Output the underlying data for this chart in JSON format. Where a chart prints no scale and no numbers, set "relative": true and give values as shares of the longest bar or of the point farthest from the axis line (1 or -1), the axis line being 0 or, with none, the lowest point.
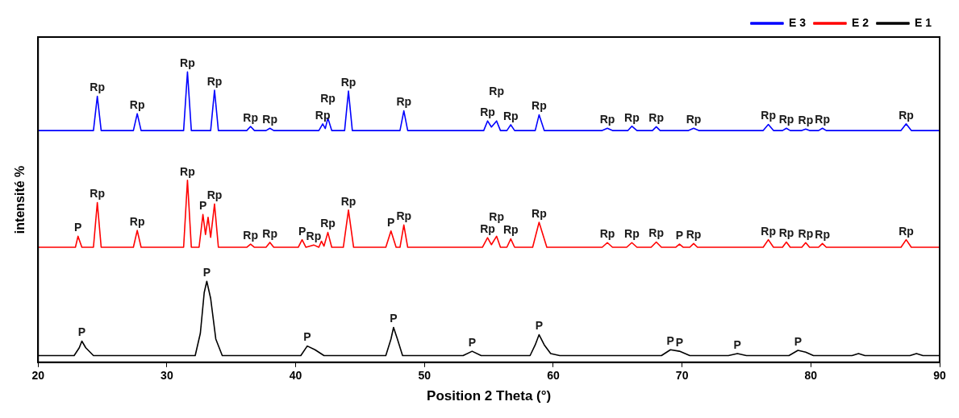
{
  "chart_data": {
    "type": "line",
    "relative": true,
    "xlabel": "Position 2 Theta (°)",
    "ylabel": "intensité %",
    "xlim": [
      20,
      90
    ],
    "xticks": [
      20,
      30,
      40,
      50,
      60,
      70,
      80,
      90
    ],
    "grid": false,
    "legend": "top right",
    "marker": "none",
    "line_style": "solid",
    "series": [
      {
        "name": "E 3",
        "color": "#0000ff",
        "x": [
          20,
          24.3,
          24.6,
          24.9,
          27.4,
          27.7,
          28.0,
          31.3,
          31.6,
          31.9,
          33.4,
          33.7,
          34.0,
          36.2,
          36.5,
          36.8,
          37.7,
          38.0,
          38.3,
          41.8,
          42.1,
          42.3,
          42.5,
          42.8,
          43.8,
          44.1,
          44.4,
          48.1,
          48.4,
          48.7,
          54.6,
          54.9,
          55.2,
          55.6,
          55.9,
          56.4,
          56.7,
          57.0,
          58.6,
          58.9,
          59.3,
          63.8,
          64.2,
          64.6,
          65.8,
          66.1,
          66.5,
          67.7,
          68.0,
          68.3,
          70.5,
          70.9,
          71.3,
          76.3,
          76.7,
          77.1,
          77.8,
          78.1,
          78.4,
          79.3,
          79.6,
          79.9,
          80.6,
          80.9,
          81.2,
          87.0,
          87.4,
          87.8,
          90
        ],
        "values": [
          0.798,
          0.798,
          0.916,
          0.798,
          0.798,
          0.856,
          0.798,
          0.798,
          1,
          0.798,
          0.798,
          0.937,
          0.798,
          0.798,
          0.812,
          0.798,
          0.798,
          0.806,
          0.798,
          0.798,
          0.821,
          0.805,
          0.841,
          0.798,
          0.798,
          0.934,
          0.798,
          0.798,
          0.866,
          0.798,
          0.798,
          0.831,
          0.81,
          0.831,
          0.798,
          0.798,
          0.818,
          0.798,
          0.798,
          0.852,
          0.798,
          0.798,
          0.806,
          0.798,
          0.798,
          0.813,
          0.798,
          0.798,
          0.811,
          0.798,
          0.798,
          0.806,
          0.798,
          0.798,
          0.819,
          0.798,
          0.798,
          0.806,
          0.798,
          0.798,
          0.803,
          0.798,
          0.798,
          0.806,
          0.798,
          0.798,
          0.821,
          0.798,
          0.798
        ]
      },
      {
        "name": "E 2",
        "color": "#ff0000",
        "x": [
          20,
          22.9,
          23.1,
          23.4,
          24.3,
          24.6,
          24.9,
          27.4,
          27.7,
          28.0,
          31.3,
          31.6,
          31.9,
          32.5,
          32.8,
          33.0,
          33.2,
          33.4,
          33.7,
          34.0,
          36.2,
          36.5,
          36.8,
          37.7,
          38.0,
          38.3,
          40.2,
          40.5,
          40.8,
          41.4,
          41.8,
          42.0,
          42.2,
          42.5,
          42.8,
          43.7,
          44.1,
          44.5,
          47.0,
          47.4,
          47.8,
          48.1,
          48.4,
          48.7,
          54.5,
          54.9,
          55.2,
          55.6,
          55.9,
          56.4,
          56.7,
          57.0,
          58.4,
          58.9,
          59.5,
          63.8,
          64.2,
          64.6,
          65.7,
          66.1,
          66.5,
          67.6,
          68.0,
          68.4,
          69.5,
          69.8,
          70.1,
          70.6,
          70.9,
          71.2,
          76.3,
          76.7,
          77.1,
          77.8,
          78.1,
          78.4,
          79.3,
          79.6,
          79.9,
          80.6,
          80.9,
          81.2,
          87.0,
          87.4,
          87.8,
          90
        ],
        "values": [
          0.396,
          0.396,
          0.434,
          0.396,
          0.396,
          0.55,
          0.396,
          0.396,
          0.454,
          0.396,
          0.396,
          0.627,
          0.396,
          0.396,
          0.509,
          0.44,
          0.499,
          0.43,
          0.545,
          0.396,
          0.396,
          0.407,
          0.396,
          0.396,
          0.413,
          0.396,
          0.396,
          0.422,
          0.396,
          0.404,
          0.396,
          0.417,
          0.4,
          0.447,
          0.396,
          0.396,
          0.524,
          0.396,
          0.396,
          0.452,
          0.396,
          0.396,
          0.473,
          0.396,
          0.396,
          0.429,
          0.405,
          0.434,
          0.396,
          0.396,
          0.425,
          0.396,
          0.396,
          0.482,
          0.396,
          0.396,
          0.412,
          0.396,
          0.396,
          0.412,
          0.396,
          0.396,
          0.414,
          0.396,
          0.396,
          0.407,
          0.396,
          0.396,
          0.409,
          0.396,
          0.396,
          0.422,
          0.396,
          0.396,
          0.414,
          0.396,
          0.396,
          0.412,
          0.396,
          0.396,
          0.409,
          0.396,
          0.396,
          0.422,
          0.396,
          0.396
        ]
      },
      {
        "name": "E 1",
        "color": "#000000",
        "x": [
          20,
          22.8,
          23.2,
          23.4,
          23.7,
          24.3,
          32.2,
          32.6,
          32.9,
          33.1,
          33.4,
          33.8,
          34.3,
          40.4,
          40.9,
          41.5,
          42.2,
          47.0,
          47.4,
          47.6,
          47.9,
          48.3,
          53.0,
          53.7,
          54.4,
          58.2,
          58.6,
          58.9,
          59.3,
          59.8,
          60.5,
          68.4,
          69.1,
          69.8,
          70.6,
          73.6,
          74.3,
          75.0,
          78.3,
          79.0,
          79.6,
          80.2,
          83.2,
          83.7,
          84.2,
          87.7,
          88.2,
          88.7,
          90
        ],
        "values": [
          0.023,
          0.023,
          0.05,
          0.073,
          0.05,
          0.023,
          0.023,
          0.1,
          0.24,
          0.279,
          0.22,
          0.08,
          0.023,
          0.023,
          0.056,
          0.043,
          0.023,
          0.023,
          0.08,
          0.12,
          0.08,
          0.023,
          0.023,
          0.038,
          0.023,
          0.023,
          0.06,
          0.095,
          0.06,
          0.03,
          0.023,
          0.023,
          0.043,
          0.038,
          0.023,
          0.023,
          0.03,
          0.023,
          0.023,
          0.041,
          0.035,
          0.023,
          0.023,
          0.03,
          0.023,
          0.023,
          0.03,
          0.023,
          0.023
        ]
      }
    ],
    "annotations": [
      {
        "text": "Rp",
        "x": 24.6,
        "y": 0.916
      },
      {
        "text": "Rp",
        "x": 27.7,
        "y": 0.856
      },
      {
        "text": "Rp",
        "x": 31.6,
        "y": 1
      },
      {
        "text": "Rp",
        "x": 33.7,
        "y": 0.937
      },
      {
        "text": "Rp",
        "x": 36.5,
        "y": 0.812
      },
      {
        "text": "Rp",
        "x": 38.0,
        "y": 0.806
      },
      {
        "text": "Rp",
        "x": 42.1,
        "y": 0.821
      },
      {
        "text": "Rp",
        "x": 42.5,
        "y": 0.841
      },
      {
        "text": "Rp",
        "x": 44.1,
        "y": 0.934
      },
      {
        "text": "Rp",
        "x": 48.4,
        "y": 0.866
      },
      {
        "text": "Rp",
        "x": 54.9,
        "y": 0.831
      },
      {
        "text": "Rp",
        "x": 55.6,
        "y": 0.831
      },
      {
        "text": "Rp",
        "x": 56.7,
        "y": 0.818
      },
      {
        "text": "Rp",
        "x": 58.9,
        "y": 0.852
      },
      {
        "text": "Rp",
        "x": 64.2,
        "y": 0.806
      },
      {
        "text": "Rp",
        "x": 66.1,
        "y": 0.813
      },
      {
        "text": "Rp",
        "x": 68.0,
        "y": 0.811
      },
      {
        "text": "Rp",
        "x": 70.9,
        "y": 0.806
      },
      {
        "text": "Rp",
        "x": 76.7,
        "y": 0.819
      },
      {
        "text": "Rp",
        "x": 78.1,
        "y": 0.806
      },
      {
        "text": "Rp",
        "x": 79.6,
        "y": 0.803
      },
      {
        "text": "Rp",
        "x": 80.9,
        "y": 0.806
      },
      {
        "text": "Rp",
        "x": 87.4,
        "y": 0.821
      },
      {
        "text": "P",
        "x": 23.1,
        "y": 0.434
      },
      {
        "text": "Rp",
        "x": 24.6,
        "y": 0.55
      },
      {
        "text": "Rp",
        "x": 27.7,
        "y": 0.454
      },
      {
        "text": "Rp",
        "x": 31.6,
        "y": 0.627
      },
      {
        "text": "P",
        "x": 32.8,
        "y": 0.509
      },
      {
        "text": "Rp",
        "x": 33.7,
        "y": 0.545
      },
      {
        "text": "Rp",
        "x": 36.5,
        "y": 0.407
      },
      {
        "text": "Rp",
        "x": 38.0,
        "y": 0.413
      },
      {
        "text": "P",
        "x": 40.5,
        "y": 0.422
      },
      {
        "text": "Rp",
        "x": 41.4,
        "y": 0.404
      },
      {
        "text": "Rp",
        "x": 42.5,
        "y": 0.447
      },
      {
        "text": "Rp",
        "x": 44.1,
        "y": 0.524
      },
      {
        "text": "P",
        "x": 47.4,
        "y": 0.452
      },
      {
        "text": "Rp",
        "x": 48.4,
        "y": 0.473
      },
      {
        "text": "Rp",
        "x": 54.9,
        "y": 0.429
      },
      {
        "text": "Rp",
        "x": 55.6,
        "y": 0.434
      },
      {
        "text": "Rp",
        "x": 56.7,
        "y": 0.425
      },
      {
        "text": "Rp",
        "x": 58.9,
        "y": 0.482
      },
      {
        "text": "Rp",
        "x": 64.2,
        "y": 0.412
      },
      {
        "text": "Rp",
        "x": 66.1,
        "y": 0.412
      },
      {
        "text": "Rp",
        "x": 68.0,
        "y": 0.414
      },
      {
        "text": "P",
        "x": 69.8,
        "y": 0.407
      },
      {
        "text": "Rp",
        "x": 70.9,
        "y": 0.409
      },
      {
        "text": "Rp",
        "x": 76.7,
        "y": 0.422
      },
      {
        "text": "Rp",
        "x": 78.1,
        "y": 0.414
      },
      {
        "text": "Rp",
        "x": 79.6,
        "y": 0.412
      },
      {
        "text": "Rp",
        "x": 80.9,
        "y": 0.409
      },
      {
        "text": "Rp",
        "x": 87.4,
        "y": 0.422
      },
      {
        "text": "P",
        "x": 23.4,
        "y": 0.073
      },
      {
        "text": "P",
        "x": 33.1,
        "y": 0.279
      },
      {
        "text": "P",
        "x": 40.9,
        "y": 0.056
      },
      {
        "text": "P",
        "x": 47.6,
        "y": 0.12
      },
      {
        "text": "P",
        "x": 53.7,
        "y": 0.038
      },
      {
        "text": "P",
        "x": 58.9,
        "y": 0.095
      },
      {
        "text": "P",
        "x": 69.1,
        "y": 0.043
      },
      {
        "text": "P",
        "x": 69.8,
        "y": 0.038
      },
      {
        "text": "P",
        "x": 74.3,
        "y": 0.03
      },
      {
        "text": "P",
        "x": 79.0,
        "y": 0.041
      }
    ]
  }
}
